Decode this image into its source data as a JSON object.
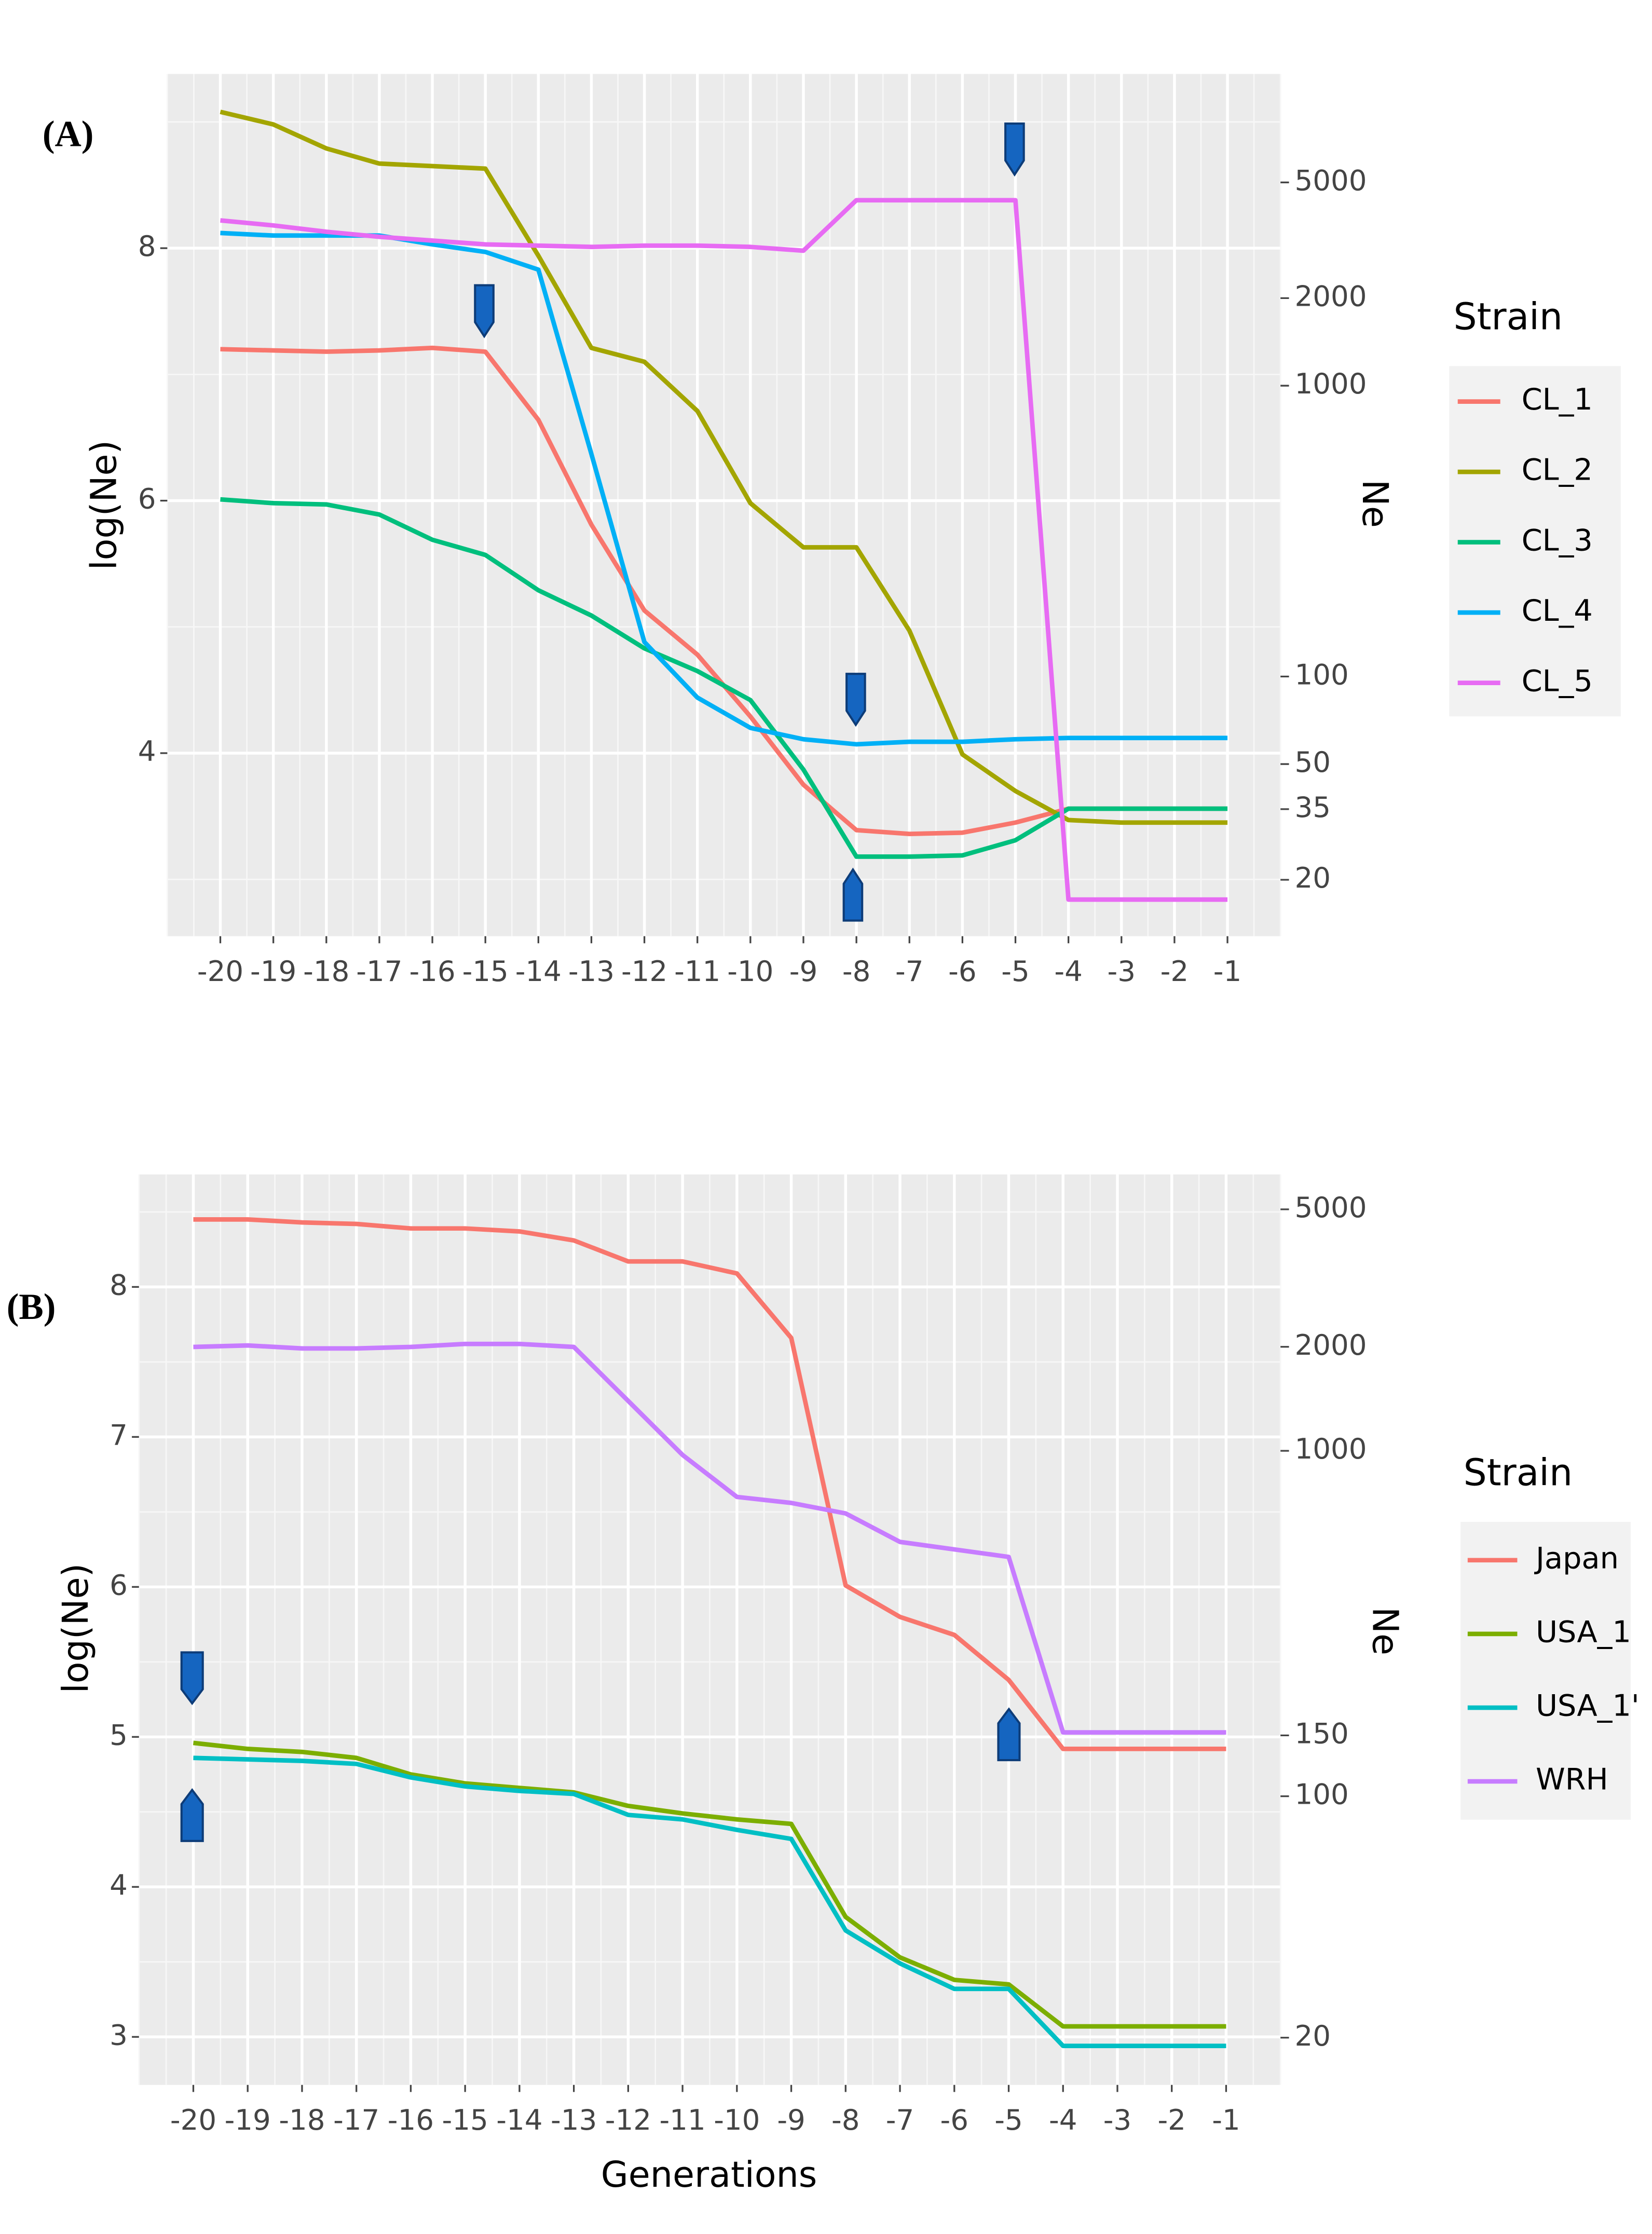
{
  "chart_data": [
    {
      "type": "line",
      "panel_label": "(A)",
      "y_label": "log(Ne)",
      "y2_label": "Ne",
      "legend_title": "Strain",
      "x": [
        -20,
        -19,
        -18,
        -17,
        -16,
        -15,
        -14,
        -13,
        -12,
        -11,
        -10,
        -9,
        -8,
        -7,
        -6,
        -5,
        -4,
        -3,
        -2,
        -1
      ],
      "xlim": [
        -21,
        0
      ],
      "xticks": [
        -20,
        -19,
        -18,
        -17,
        -16,
        -15,
        -14,
        -13,
        -12,
        -11,
        -10,
        -9,
        -8,
        -7,
        -6,
        -5,
        -4,
        -3,
        -2,
        -1
      ],
      "ylim": [
        2.55,
        9.38
      ],
      "yticks": [
        4,
        6,
        8
      ],
      "y2lim": [
        12.8,
        11800
      ],
      "y2_log_scale": true,
      "y2ticks": [
        20,
        35,
        50,
        100,
        1000,
        2000,
        5000
      ],
      "grid": true,
      "legend": "right",
      "series": [
        {
          "name": "CL_1",
          "color": "#f8766d",
          "values": [
            7.2,
            7.19,
            7.18,
            7.19,
            7.21,
            7.18,
            6.64,
            5.81,
            5.13,
            4.78,
            4.29,
            3.75,
            3.39,
            3.36,
            3.37,
            3.45,
            3.56,
            3.56,
            3.56,
            3.56
          ]
        },
        {
          "name": "CL_2",
          "color": "#a3a500",
          "values": [
            9.08,
            8.98,
            8.79,
            8.67,
            8.65,
            8.63,
            7.94,
            7.21,
            7.1,
            6.71,
            5.98,
            5.63,
            5.63,
            4.97,
            3.99,
            3.7,
            3.47,
            3.45,
            3.45,
            3.45
          ]
        },
        {
          "name": "CL_3",
          "color": "#00bf7d",
          "values": [
            6.01,
            5.98,
            5.97,
            5.89,
            5.69,
            5.57,
            5.29,
            5.09,
            4.83,
            4.65,
            4.42,
            3.87,
            3.18,
            3.18,
            3.19,
            3.31,
            3.56,
            3.56,
            3.56,
            3.56
          ]
        },
        {
          "name": "CL_4",
          "color": "#00b0f6",
          "values": [
            8.12,
            8.1,
            8.1,
            8.1,
            8.03,
            7.97,
            7.83,
            6.37,
            4.88,
            4.44,
            4.2,
            4.11,
            4.07,
            4.09,
            4.09,
            4.11,
            4.12,
            4.12,
            4.12,
            4.12
          ]
        },
        {
          "name": "CL_5",
          "color": "#e76bf3",
          "values": [
            8.22,
            8.18,
            8.13,
            8.09,
            8.06,
            8.03,
            8.02,
            8.01,
            8.02,
            8.02,
            8.01,
            7.98,
            8.38,
            8.38,
            8.38,
            8.38,
            2.84,
            2.84,
            2.84,
            2.84
          ]
        }
      ]
    },
    {
      "type": "line",
      "panel_label": "(B)",
      "x_label": "Generations",
      "y_label": "log(Ne)",
      "y2_label": "Ne",
      "legend_title": "Strain",
      "x": [
        -20,
        -19,
        -18,
        -17,
        -16,
        -15,
        -14,
        -13,
        -12,
        -11,
        -10,
        -9,
        -8,
        -7,
        -6,
        -5,
        -4,
        -3,
        -2,
        -1
      ],
      "xlim": [
        -21,
        0
      ],
      "xticks": [
        -20,
        -19,
        -18,
        -17,
        -16,
        -15,
        -14,
        -13,
        -12,
        -11,
        -10,
        -9,
        -8,
        -7,
        -6,
        -5,
        -4,
        -3,
        -2,
        -1
      ],
      "ylim": [
        2.68,
        8.75
      ],
      "yticks": [
        3,
        4,
        5,
        6,
        7,
        8
      ],
      "y2lim": [
        14.6,
        6310
      ],
      "y2_log_scale": true,
      "y2ticks": [
        20,
        100,
        150,
        1000,
        2000,
        5000
      ],
      "grid": true,
      "legend": "right",
      "series": [
        {
          "name": "Japan",
          "color": "#f8766d",
          "values": [
            8.45,
            8.45,
            8.43,
            8.42,
            8.39,
            8.39,
            8.37,
            8.31,
            8.17,
            8.17,
            8.09,
            7.66,
            6.01,
            5.8,
            5.68,
            5.38,
            4.92,
            4.92,
            4.92,
            4.92
          ]
        },
        {
          "name": "USA_1",
          "color": "#7cae00",
          "values": [
            4.96,
            4.92,
            4.9,
            4.86,
            4.75,
            4.69,
            4.66,
            4.63,
            4.54,
            4.49,
            4.45,
            4.42,
            3.8,
            3.53,
            3.38,
            3.35,
            3.07,
            3.07,
            3.07,
            3.07
          ]
        },
        {
          "name": "USA_1'",
          "color": "#00bfc4",
          "values": [
            4.86,
            4.85,
            4.84,
            4.82,
            4.73,
            4.67,
            4.64,
            4.62,
            4.48,
            4.45,
            4.38,
            4.32,
            3.71,
            3.49,
            3.32,
            3.32,
            2.94,
            2.94,
            2.94,
            2.94
          ]
        },
        {
          "name": "WRH",
          "color": "#c77cff",
          "values": [
            7.6,
            7.61,
            7.59,
            7.59,
            7.6,
            7.62,
            7.62,
            7.6,
            7.24,
            6.88,
            6.6,
            6.56,
            6.49,
            6.3,
            6.25,
            6.2,
            5.03,
            5.03,
            5.03,
            5.03
          ]
        }
      ]
    }
  ]
}
